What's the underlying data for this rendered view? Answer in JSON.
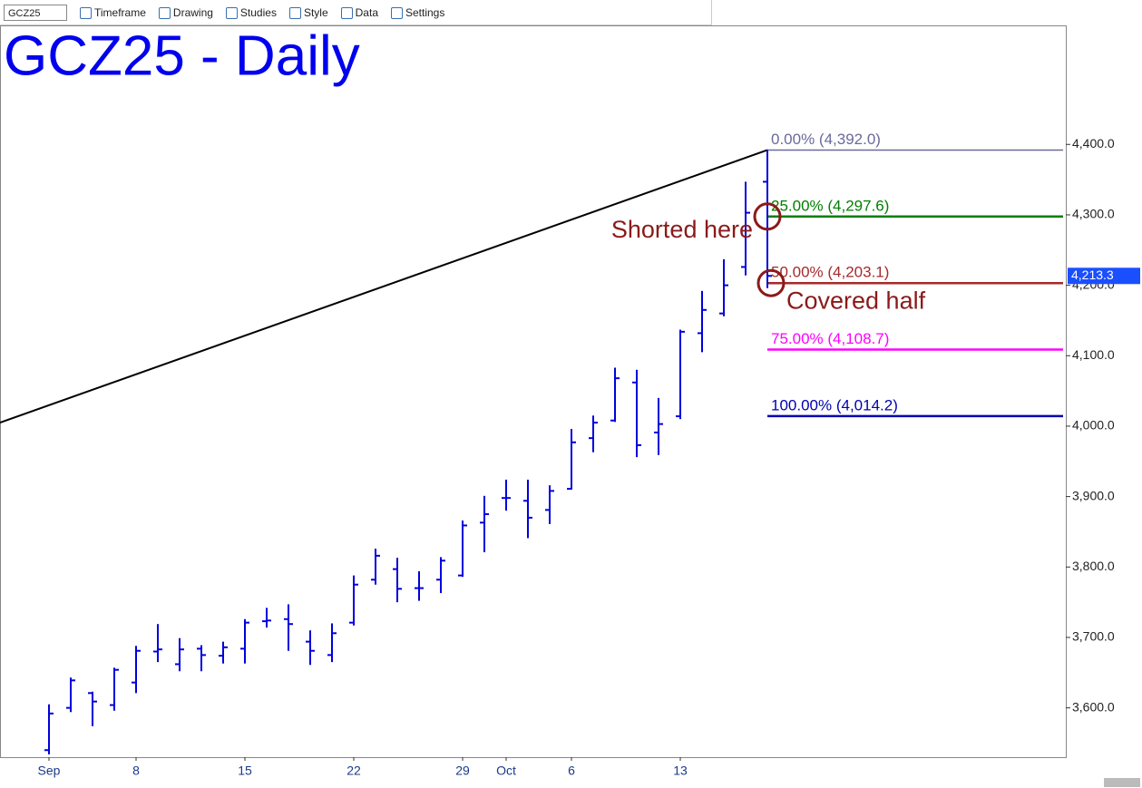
{
  "toolbar": {
    "symbol": "GCZ25",
    "items": [
      "Timeframe",
      "Drawing",
      "Studies",
      "Style",
      "Data",
      "Settings"
    ]
  },
  "chart_data": {
    "type": "ohlc",
    "title": "GCZ25 - Daily",
    "categories": [
      "Sep",
      null,
      null,
      null,
      "8",
      null,
      null,
      null,
      null,
      "15",
      null,
      null,
      null,
      null,
      "22",
      null,
      null,
      null,
      null,
      "29",
      null,
      "Oct",
      null,
      null,
      "6",
      null,
      null,
      null,
      null,
      "13",
      null,
      null,
      null,
      null
    ],
    "open": [
      3540,
      3600,
      3621,
      3604,
      3636,
      3680,
      3662,
      3684,
      3674,
      3684,
      3723,
      3726,
      3694,
      3675,
      3721,
      3782,
      3797,
      3770,
      3782,
      3788,
      3863,
      3898,
      3894,
      3881,
      3911,
      3983,
      4008,
      4062,
      3991,
      4014,
      4132,
      4160,
      4226,
      4347
    ],
    "high": [
      3605,
      3643,
      3623,
      3657,
      3688,
      3719,
      3699,
      3689,
      3694,
      3726,
      3742,
      3747,
      3710,
      3720,
      3788,
      3826,
      3813,
      3794,
      3814,
      3866,
      3901,
      3924,
      3924,
      3916,
      3996,
      4015,
      4083,
      4080,
      4040,
      4137,
      4192,
      4237,
      4347,
      4392
    ],
    "low": [
      3534,
      3594,
      3574,
      3596,
      3621,
      3665,
      3652,
      3652,
      3663,
      3663,
      3714,
      3681,
      3661,
      3665,
      3717,
      3775,
      3750,
      3752,
      3763,
      3786,
      3821,
      3880,
      3841,
      3861,
      3910,
      3963,
      4006,
      3956,
      3959,
      4010,
      4105,
      4156,
      4214,
      4196
    ],
    "close": [
      3592,
      3639,
      3609,
      3654,
      3681,
      3683,
      3683,
      3675,
      3686,
      3721,
      3724,
      3719,
      3681,
      3706,
      3775,
      3816,
      3769,
      3770,
      3809,
      3859,
      3875,
      3898,
      3870,
      3908,
      3977,
      4005,
      4068,
      3973,
      4003,
      4134,
      4165,
      4200,
      4303,
      4213.3
    ],
    "color": "#0000dd",
    "ylim": [
      3530,
      4569
    ],
    "yticks": [
      {
        "value": 3600,
        "label": "3,600.0"
      },
      {
        "value": 3700,
        "label": "3,700.0"
      },
      {
        "value": 3800,
        "label": "3,800.0"
      },
      {
        "value": 3900,
        "label": "3,900.0"
      },
      {
        "value": 4000,
        "label": "4,000.0"
      },
      {
        "value": 4100,
        "label": "4,100.0"
      },
      {
        "value": 4200,
        "label": "4,200.0"
      },
      {
        "value": 4300,
        "label": "4,300.0"
      },
      {
        "value": 4400,
        "label": "4,400.0"
      }
    ],
    "last_price": {
      "value": 4213.3,
      "label": "4,213.3"
    },
    "trendline": [
      4005,
      4392
    ],
    "fib_levels": [
      {
        "value": 4392.0,
        "label": "0.00% (4,392.0)",
        "color": "#6a6a9a"
      },
      {
        "value": 4297.6,
        "label": "25.00% (4,297.6)",
        "color": "#008000"
      },
      {
        "value": 4203.1,
        "label": "50.00% (4,203.1)",
        "color": "#a52a2a"
      },
      {
        "value": 4108.7,
        "label": "75.00% (4,108.7)",
        "color": "#ff00ff"
      },
      {
        "value": 4014.2,
        "label": "100.00% (4,014.2)",
        "color": "#0000b0"
      }
    ],
    "annotations": [
      {
        "text": "Shorted here",
        "value": 4297.6
      },
      {
        "text": "Covered half",
        "value": 4203.1
      }
    ]
  }
}
